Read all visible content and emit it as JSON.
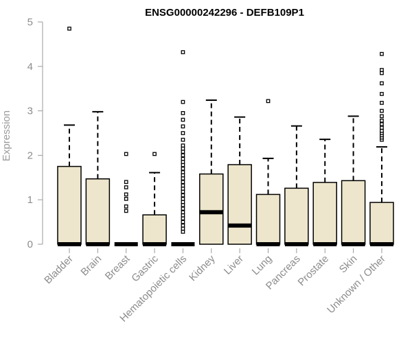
{
  "chart_data": {
    "type": "boxplot",
    "title": "ENSG00000242296 - DEFB109P1",
    "xlabel": "",
    "ylabel": "Expression",
    "ylim": [
      0,
      5
    ],
    "yticks": [
      0,
      1,
      2,
      3,
      4,
      5
    ],
    "grid": false,
    "box_fill": "#ede6cc",
    "line_color": "#000000",
    "categories": [
      "Bladder",
      "Brain",
      "Breast",
      "Gastric",
      "Hematopoietic cells",
      "Kidney",
      "Liver",
      "Lung",
      "Pancreas",
      "Prostate",
      "Skin",
      "Unknown / Other"
    ],
    "boxes": [
      {
        "q1": 0,
        "median": 0,
        "q3": 1.75,
        "whisker_low": 0,
        "whisker_high": 2.68,
        "outliers": [
          4.85
        ]
      },
      {
        "q1": 0,
        "median": 0,
        "q3": 1.47,
        "whisker_low": 0,
        "whisker_high": 2.98,
        "outliers": []
      },
      {
        "q1": 0,
        "median": 0,
        "q3": 0,
        "whisker_low": 0,
        "whisker_high": 0,
        "outliers": [
          0.75,
          0.85,
          1.02,
          1.12,
          1.28,
          1.4,
          2.03
        ]
      },
      {
        "q1": 0,
        "median": 0,
        "q3": 0.66,
        "whisker_low": 0,
        "whisker_high": 1.61,
        "outliers": [
          2.03
        ]
      },
      {
        "q1": 0,
        "median": 0,
        "q3": 0,
        "whisker_low": 0,
        "whisker_high": 0,
        "outliers": [
          0.28,
          0.35,
          0.42,
          0.5,
          0.58,
          0.65,
          0.72,
          0.8,
          0.88,
          0.95,
          1.02,
          1.1,
          1.18,
          1.25,
          1.32,
          1.4,
          1.48,
          1.55,
          1.62,
          1.7,
          1.78,
          1.85,
          1.92,
          2.0,
          2.08,
          2.15,
          2.22,
          2.35,
          2.5,
          2.65,
          2.8,
          2.95,
          3.2,
          4.32
        ]
      },
      {
        "q1": 0,
        "median": 0.72,
        "q3": 1.58,
        "whisker_low": 0,
        "whisker_high": 3.24,
        "outliers": []
      },
      {
        "q1": 0,
        "median": 0.42,
        "q3": 1.79,
        "whisker_low": 0,
        "whisker_high": 2.86,
        "outliers": []
      },
      {
        "q1": 0,
        "median": 0,
        "q3": 1.12,
        "whisker_low": 0,
        "whisker_high": 1.93,
        "outliers": [
          3.22
        ]
      },
      {
        "q1": 0,
        "median": 0,
        "q3": 1.26,
        "whisker_low": 0,
        "whisker_high": 2.66,
        "outliers": []
      },
      {
        "q1": 0,
        "median": 0,
        "q3": 1.39,
        "whisker_low": 0,
        "whisker_high": 2.36,
        "outliers": []
      },
      {
        "q1": 0,
        "median": 0,
        "q3": 1.43,
        "whisker_low": 0,
        "whisker_high": 2.88,
        "outliers": []
      },
      {
        "q1": 0,
        "median": 0,
        "q3": 0.94,
        "whisker_low": 0,
        "whisker_high": 2.19,
        "outliers": [
          2.35,
          2.4,
          2.45,
          2.5,
          2.55,
          2.62,
          2.7,
          2.78,
          2.88,
          3.0,
          3.18,
          3.38,
          3.62,
          3.85,
          3.92,
          4.28
        ]
      }
    ]
  }
}
